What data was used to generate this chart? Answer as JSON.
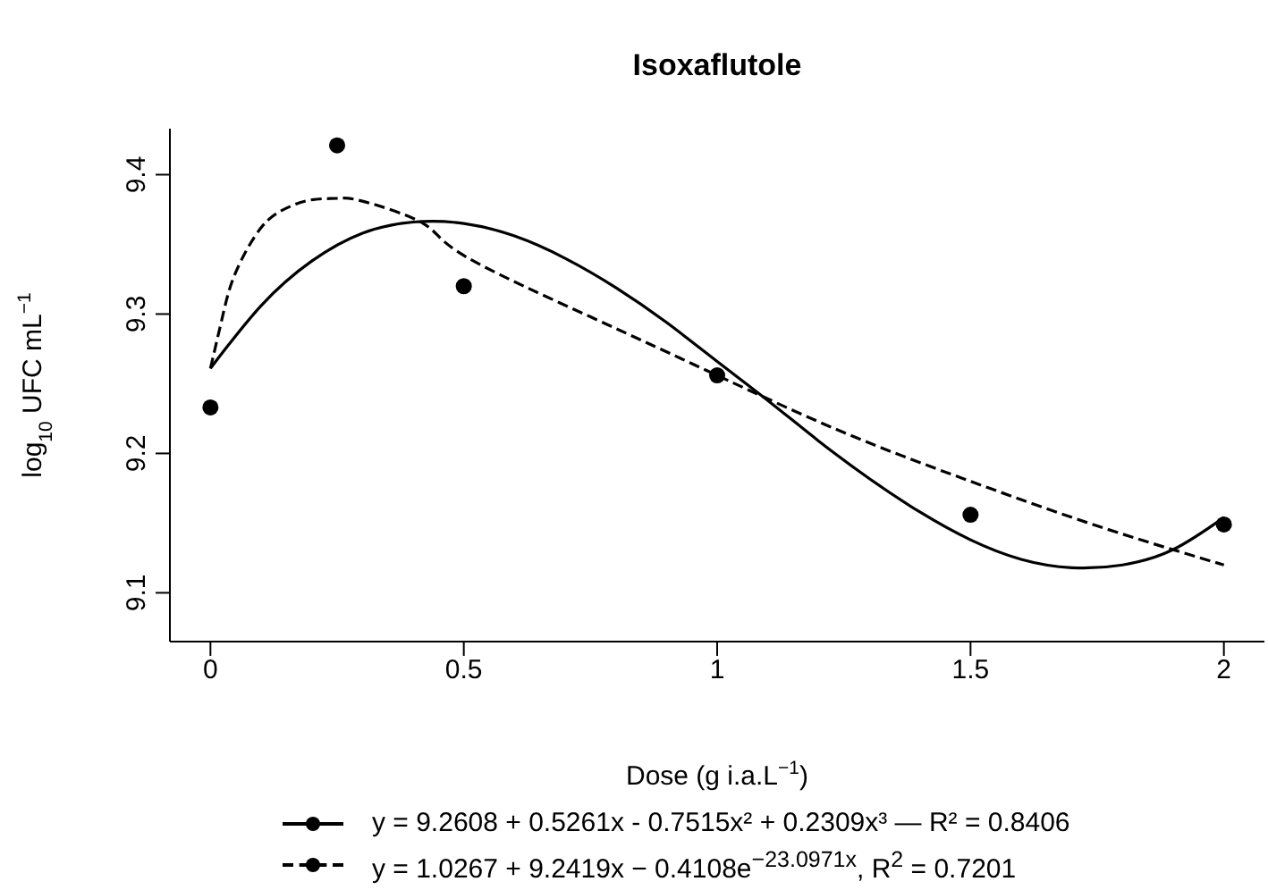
{
  "chart_data": {
    "type": "scatter",
    "title": "Isoxaflutole",
    "xlabel": "Dose (g i.a.L$^{−1}$)",
    "ylabel": "log$_{10}$ UFC mL$^{−1}$",
    "xlim": [
      -0.08,
      2.08
    ],
    "ylim": [
      9.065,
      9.433
    ],
    "xticks": [
      0,
      0.5,
      1,
      1.5,
      2
    ],
    "yticks": [
      9.1,
      9.2,
      9.3,
      9.4
    ],
    "grid": false,
    "legend": "bottom",
    "series": [
      {
        "type": "scatter",
        "color": "#000000",
        "marker": "circle",
        "x": [
          0,
          0.25,
          0.5,
          1,
          1.5,
          2
        ],
        "values": [
          9.233,
          9.421,
          9.32,
          9.256,
          9.156,
          9.149
        ]
      },
      {
        "type": "line",
        "name": "y = 9.2608 + 0.5261x - 0.7515x² + 0.2309x³ — R² = 0.8406",
        "color": "#000000",
        "line_style": "solid",
        "marker": "none",
        "x": [
          0,
          0.1,
          0.2,
          0.3,
          0.4,
          0.5,
          0.6,
          0.7,
          0.8,
          0.9,
          1,
          1.1,
          1.2,
          1.3,
          1.4,
          1.5,
          1.6,
          1.7,
          1.8,
          1.9,
          2
        ],
        "values": [
          9.261,
          9.306,
          9.338,
          9.358,
          9.366,
          9.365,
          9.356,
          9.34,
          9.319,
          9.294,
          9.266,
          9.238,
          9.209,
          9.182,
          9.158,
          9.138,
          9.124,
          9.118,
          9.12,
          9.131,
          9.154
        ]
      },
      {
        "type": "line",
        "name": "y = 1.0267 + 9.2419x − 0.4108e$^{−23.0971x}$, R$^{2}$ = 0.7201",
        "color": "#000000",
        "line_style": "dashed",
        "marker": "none",
        "x": [
          0,
          0.025,
          0.05,
          0.1,
          0.15,
          0.2,
          0.25,
          0.3,
          0.42,
          0.5,
          0.75,
          1,
          1.25,
          1.5,
          1.75,
          2
        ],
        "values": [
          9.261,
          9.3,
          9.33,
          9.362,
          9.376,
          9.382,
          9.383,
          9.381,
          9.365,
          9.342,
          9.298,
          9.256,
          9.215,
          9.18,
          9.148,
          9.12
        ]
      }
    ]
  }
}
